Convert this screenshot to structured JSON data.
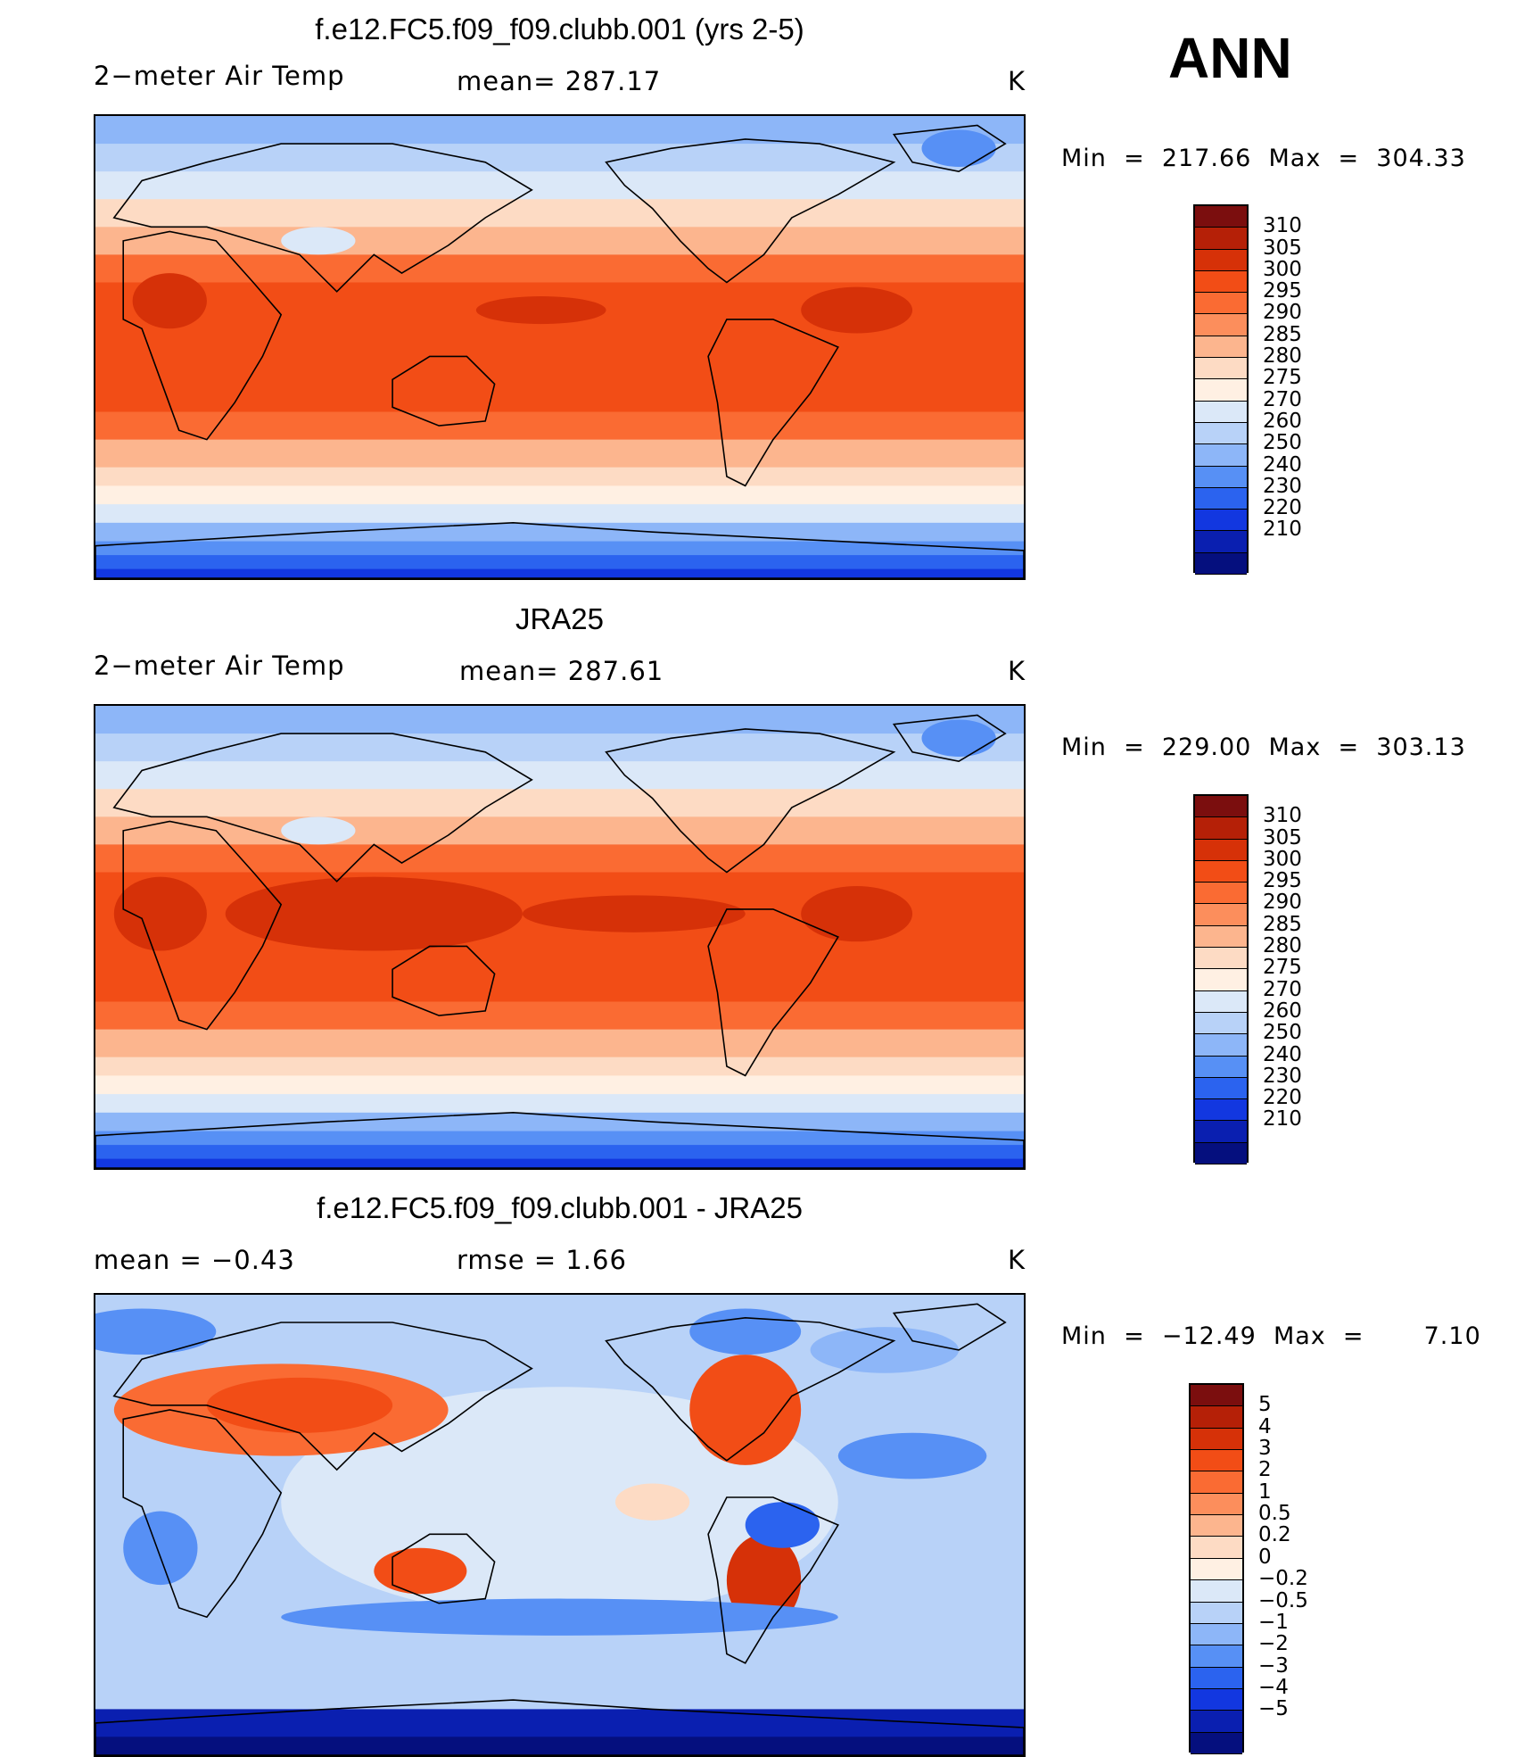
{
  "season": "ANN",
  "panels": [
    {
      "title": "f.e12.FC5.f09_f09.clubb.001 (yrs 2-5)",
      "left_label": "2−meter Air Temp",
      "mid_label": "mean=  287.17",
      "unit": "K",
      "min_max": "Min  =  217.66  Max  =  304.33"
    },
    {
      "title": "JRA25",
      "left_label": "2−meter Air Temp",
      "mid_label": "mean=  287.61",
      "unit": "K",
      "min_max": "Min  =  229.00  Max  =  303.13"
    },
    {
      "title": "f.e12.FC5.f09_f09.clubb.001 - JRA25",
      "left_label": "mean  =     −0.43",
      "mid_label": "rmse  =     1.66",
      "unit": "K",
      "min_max": "Min  =  −12.49  Max  =       7.10"
    }
  ],
  "colorbars": {
    "absolute": {
      "labels": [
        "310",
        "305",
        "300",
        "295",
        "290",
        "285",
        "280",
        "275",
        "270",
        "260",
        "250",
        "240",
        "230",
        "220",
        "210"
      ],
      "colors": [
        "#7b0e0e",
        "#b52007",
        "#d63108",
        "#f24d16",
        "#fa6b33",
        "#fc8e5c",
        "#fcb58e",
        "#fddbc4",
        "#fff0e3",
        "#dbe8f8",
        "#b8d2f8",
        "#8db6f8",
        "#5790f5",
        "#2b63ef",
        "#1237e0",
        "#0a1fb0",
        "#050f7e"
      ]
    },
    "difference": {
      "labels": [
        "5",
        "4",
        "3",
        "2",
        "1",
        "0.5",
        "0.2",
        "0",
        "−0.2",
        "−0.5",
        "−1",
        "−2",
        "−3",
        "−4",
        "−5"
      ],
      "colors": [
        "#7b0e0e",
        "#b52007",
        "#d63108",
        "#f24d16",
        "#fa6b33",
        "#fc8e5c",
        "#fcb58e",
        "#fddbc4",
        "#fff0e3",
        "#dbe8f8",
        "#b8d2f8",
        "#8db6f8",
        "#5790f5",
        "#2b63ef",
        "#1237e0",
        "#0a1fb0",
        "#050f7e"
      ]
    }
  }
}
